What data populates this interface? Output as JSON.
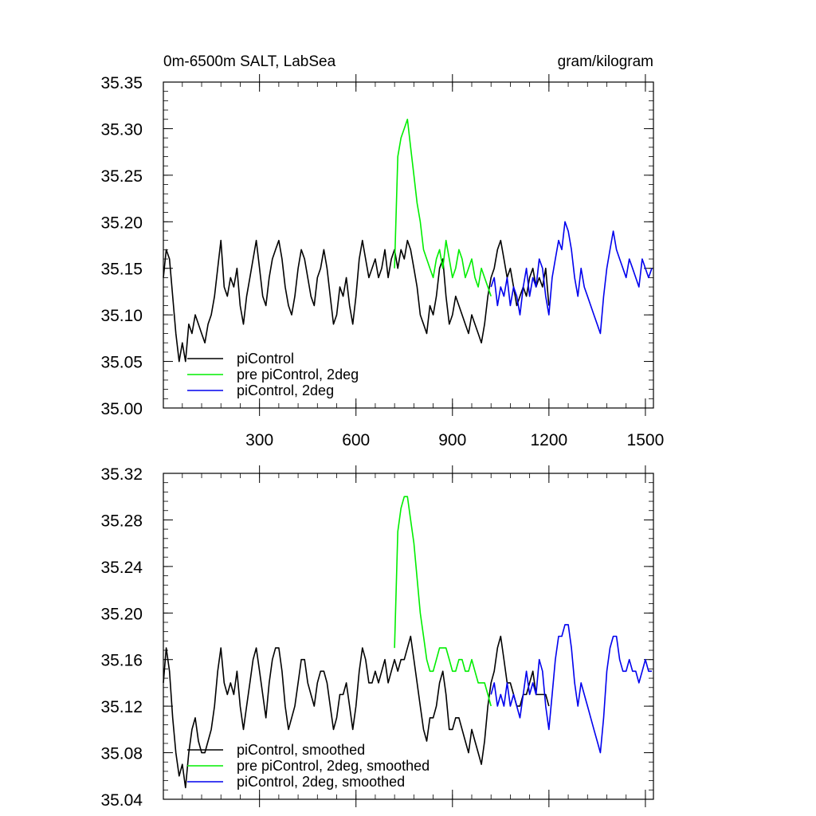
{
  "chart_data": [
    {
      "type": "line",
      "title_left": "0m-6500m SALT, LabSea",
      "title_right": "gram/kilogram",
      "xlim": [
        1,
        1525
      ],
      "ylim": [
        35.0,
        35.35
      ],
      "xticks": [
        300,
        600,
        900,
        1200,
        1500
      ],
      "xtick_labels": [
        "300",
        "600",
        "900",
        "1200",
        "1500"
      ],
      "yticks": [
        35.0,
        35.05,
        35.1,
        35.15,
        35.2,
        35.25,
        35.3,
        35.35
      ],
      "ytick_labels": [
        "35.00",
        "35.05",
        "35.10",
        "35.15",
        "35.20",
        "35.25",
        "35.30",
        "35.35"
      ],
      "grid": false,
      "legend_position": "bottom-left",
      "series": [
        {
          "name": "piControl",
          "color": "#000000",
          "x": [
            1,
            10,
            20,
            30,
            40,
            50,
            60,
            70,
            80,
            90,
            100,
            110,
            120,
            130,
            140,
            150,
            160,
            170,
            180,
            190,
            200,
            210,
            220,
            230,
            240,
            250,
            260,
            270,
            280,
            290,
            300,
            310,
            320,
            330,
            340,
            350,
            360,
            370,
            380,
            390,
            400,
            410,
            420,
            430,
            440,
            450,
            460,
            470,
            480,
            490,
            500,
            510,
            520,
            530,
            540,
            550,
            560,
            570,
            580,
            590,
            600,
            610,
            620,
            630,
            640,
            650,
            660,
            670,
            680,
            690,
            700,
            710,
            720,
            730,
            740,
            750,
            760,
            770,
            780,
            790,
            800,
            810,
            820,
            830,
            840,
            850,
            860,
            870,
            880,
            890,
            900,
            910,
            920,
            930,
            940,
            950,
            960,
            970,
            980,
            990,
            1000,
            1010,
            1020,
            1030,
            1040,
            1050,
            1060,
            1070,
            1080,
            1090,
            1100,
            1110,
            1120,
            1130,
            1140,
            1150,
            1160,
            1170,
            1180,
            1190,
            1200
          ],
          "y": [
            35.14,
            35.17,
            35.16,
            35.12,
            35.08,
            35.05,
            35.07,
            35.05,
            35.09,
            35.08,
            35.1,
            35.09,
            35.08,
            35.07,
            35.09,
            35.1,
            35.12,
            35.15,
            35.18,
            35.13,
            35.12,
            35.14,
            35.13,
            35.15,
            35.11,
            35.09,
            35.12,
            35.14,
            35.16,
            35.18,
            35.15,
            35.12,
            35.11,
            35.14,
            35.16,
            35.17,
            35.18,
            35.16,
            35.13,
            35.11,
            35.1,
            35.12,
            35.15,
            35.17,
            35.16,
            35.14,
            35.12,
            35.11,
            35.14,
            35.15,
            35.17,
            35.15,
            35.12,
            35.09,
            35.1,
            35.13,
            35.12,
            35.14,
            35.11,
            35.09,
            35.12,
            35.16,
            35.18,
            35.16,
            35.14,
            35.15,
            35.16,
            35.14,
            35.15,
            35.17,
            35.14,
            35.16,
            35.17,
            35.15,
            35.17,
            35.16,
            35.18,
            35.17,
            35.15,
            35.13,
            35.1,
            35.09,
            35.08,
            35.11,
            35.1,
            35.12,
            35.15,
            35.16,
            35.12,
            35.09,
            35.1,
            35.12,
            35.11,
            35.1,
            35.09,
            35.08,
            35.1,
            35.09,
            35.08,
            35.07,
            35.09,
            35.12,
            35.14,
            35.15,
            35.17,
            35.18,
            35.16,
            35.14,
            35.15,
            35.13,
            35.11,
            35.12,
            35.13,
            35.12,
            35.14,
            35.15,
            35.13,
            35.14,
            35.13,
            35.15,
            35.11
          ]
        },
        {
          "name": "pre piControl, 2deg",
          "color": "#00ee00",
          "x": [
            720,
            730,
            740,
            750,
            760,
            770,
            780,
            790,
            800,
            810,
            820,
            830,
            840,
            850,
            860,
            870,
            880,
            890,
            900,
            910,
            920,
            930,
            940,
            950,
            960,
            970,
            980,
            990,
            1000,
            1010,
            1020
          ],
          "y": [
            35.15,
            35.27,
            35.29,
            35.3,
            35.31,
            35.28,
            35.25,
            35.22,
            35.2,
            35.17,
            35.16,
            35.15,
            35.14,
            35.16,
            35.17,
            35.15,
            35.18,
            35.16,
            35.14,
            35.15,
            35.17,
            35.16,
            35.14,
            35.15,
            35.16,
            35.14,
            35.13,
            35.15,
            35.14,
            35.13,
            35.12
          ]
        },
        {
          "name": "piControl, 2deg",
          "color": "#0000ee",
          "x": [
            1020,
            1030,
            1040,
            1050,
            1060,
            1070,
            1080,
            1090,
            1100,
            1110,
            1120,
            1130,
            1140,
            1150,
            1160,
            1170,
            1180,
            1190,
            1200,
            1210,
            1220,
            1230,
            1240,
            1250,
            1260,
            1270,
            1280,
            1290,
            1300,
            1310,
            1320,
            1330,
            1340,
            1350,
            1360,
            1370,
            1380,
            1390,
            1400,
            1410,
            1420,
            1430,
            1440,
            1450,
            1460,
            1470,
            1480,
            1490,
            1500,
            1510,
            1520
          ],
          "y": [
            35.13,
            35.14,
            35.11,
            35.13,
            35.12,
            35.14,
            35.11,
            35.13,
            35.12,
            35.1,
            35.13,
            35.15,
            35.12,
            35.14,
            35.13,
            35.16,
            35.15,
            35.12,
            35.1,
            35.14,
            35.16,
            35.18,
            35.17,
            35.2,
            35.19,
            35.17,
            35.14,
            35.12,
            35.15,
            35.13,
            35.12,
            35.11,
            35.1,
            35.09,
            35.08,
            35.12,
            35.15,
            35.17,
            35.19,
            35.17,
            35.16,
            35.15,
            35.14,
            35.16,
            35.15,
            35.14,
            35.13,
            35.16,
            35.15,
            35.14,
            35.15
          ]
        }
      ]
    },
    {
      "type": "line",
      "xlim": [
        1,
        1525
      ],
      "ylim": [
        35.04,
        35.32
      ],
      "xticks": [
        300,
        600,
        900,
        1200,
        1500
      ],
      "yticks": [
        35.04,
        35.08,
        35.12,
        35.16,
        35.2,
        35.24,
        35.28,
        35.32
      ],
      "ytick_labels": [
        "35.04",
        "35.08",
        "35.12",
        "35.16",
        "35.20",
        "35.24",
        "35.28",
        "35.32"
      ],
      "grid": false,
      "legend_position": "bottom-left",
      "series": [
        {
          "name": "piControl, smoothed",
          "color": "#000000",
          "x": [
            1,
            10,
            20,
            30,
            40,
            50,
            60,
            70,
            80,
            90,
            100,
            110,
            120,
            130,
            140,
            150,
            160,
            170,
            180,
            190,
            200,
            210,
            220,
            230,
            240,
            250,
            260,
            270,
            280,
            290,
            300,
            310,
            320,
            330,
            340,
            350,
            360,
            370,
            380,
            390,
            400,
            410,
            420,
            430,
            440,
            450,
            460,
            470,
            480,
            490,
            500,
            510,
            520,
            530,
            540,
            550,
            560,
            570,
            580,
            590,
            600,
            610,
            620,
            630,
            640,
            650,
            660,
            670,
            680,
            690,
            700,
            710,
            720,
            730,
            740,
            750,
            760,
            770,
            780,
            790,
            800,
            810,
            820,
            830,
            840,
            850,
            860,
            870,
            880,
            890,
            900,
            910,
            920,
            930,
            940,
            950,
            960,
            970,
            980,
            990,
            1000,
            1010,
            1020,
            1030,
            1040,
            1050,
            1060,
            1070,
            1080,
            1090,
            1100,
            1110,
            1120,
            1130,
            1140,
            1150,
            1160,
            1170,
            1180,
            1190,
            1200
          ],
          "y": [
            35.14,
            35.17,
            35.15,
            35.11,
            35.08,
            35.06,
            35.07,
            35.05,
            35.08,
            35.1,
            35.11,
            35.09,
            35.08,
            35.08,
            35.09,
            35.1,
            35.12,
            35.15,
            35.17,
            35.14,
            35.13,
            35.14,
            35.13,
            35.15,
            35.12,
            35.1,
            35.12,
            35.14,
            35.16,
            35.17,
            35.15,
            35.13,
            35.11,
            35.14,
            35.16,
            35.17,
            35.17,
            35.15,
            35.12,
            35.1,
            35.11,
            35.12,
            35.14,
            35.16,
            35.16,
            35.14,
            35.13,
            35.12,
            35.14,
            35.15,
            35.15,
            35.14,
            35.12,
            35.1,
            35.11,
            35.13,
            35.13,
            35.14,
            35.12,
            35.1,
            35.12,
            35.15,
            35.17,
            35.16,
            35.14,
            35.14,
            35.15,
            35.14,
            35.15,
            35.16,
            35.14,
            35.15,
            35.16,
            35.15,
            35.16,
            35.16,
            35.17,
            35.18,
            35.16,
            35.14,
            35.12,
            35.1,
            35.09,
            35.11,
            35.11,
            35.12,
            35.14,
            35.15,
            35.13,
            35.1,
            35.1,
            35.11,
            35.11,
            35.1,
            35.09,
            35.08,
            35.1,
            35.09,
            35.08,
            35.07,
            35.09,
            35.12,
            35.14,
            35.15,
            35.17,
            35.18,
            35.16,
            35.14,
            35.14,
            35.13,
            35.12,
            35.12,
            35.13,
            35.13,
            35.14,
            35.15,
            35.13,
            35.13,
            35.13,
            35.13,
            35.12
          ]
        },
        {
          "name": "pre piControl, 2deg, smoothed",
          "color": "#00ee00",
          "x": [
            720,
            730,
            740,
            750,
            760,
            770,
            780,
            790,
            800,
            810,
            820,
            830,
            840,
            850,
            860,
            870,
            880,
            890,
            900,
            910,
            920,
            930,
            940,
            950,
            960,
            970,
            980,
            990,
            1000,
            1010,
            1020
          ],
          "y": [
            35.17,
            35.27,
            35.29,
            35.3,
            35.3,
            35.28,
            35.26,
            35.23,
            35.2,
            35.18,
            35.16,
            35.15,
            35.15,
            35.16,
            35.17,
            35.17,
            35.17,
            35.16,
            35.15,
            35.15,
            35.16,
            35.16,
            35.15,
            35.15,
            35.16,
            35.15,
            35.14,
            35.14,
            35.14,
            35.13,
            35.12
          ]
        },
        {
          "name": "piControl, 2deg, smoothed",
          "color": "#0000ee",
          "x": [
            1020,
            1030,
            1040,
            1050,
            1060,
            1070,
            1080,
            1090,
            1100,
            1110,
            1120,
            1130,
            1140,
            1150,
            1160,
            1170,
            1180,
            1190,
            1200,
            1210,
            1220,
            1230,
            1240,
            1250,
            1260,
            1270,
            1280,
            1290,
            1300,
            1310,
            1320,
            1330,
            1340,
            1350,
            1360,
            1370,
            1380,
            1390,
            1400,
            1410,
            1420,
            1430,
            1440,
            1450,
            1460,
            1470,
            1480,
            1490,
            1500,
            1510,
            1520
          ],
          "y": [
            35.13,
            35.14,
            35.12,
            35.13,
            35.12,
            35.14,
            35.12,
            35.13,
            35.12,
            35.11,
            35.13,
            35.15,
            35.13,
            35.14,
            35.13,
            35.16,
            35.15,
            35.12,
            35.1,
            35.13,
            35.16,
            35.18,
            35.18,
            35.19,
            35.19,
            35.17,
            35.14,
            35.12,
            35.14,
            35.13,
            35.12,
            35.11,
            35.1,
            35.09,
            35.08,
            35.11,
            35.15,
            35.17,
            35.18,
            35.18,
            35.16,
            35.15,
            35.15,
            35.16,
            35.15,
            35.15,
            35.14,
            35.15,
            35.16,
            35.15,
            35.15
          ]
        }
      ]
    }
  ]
}
